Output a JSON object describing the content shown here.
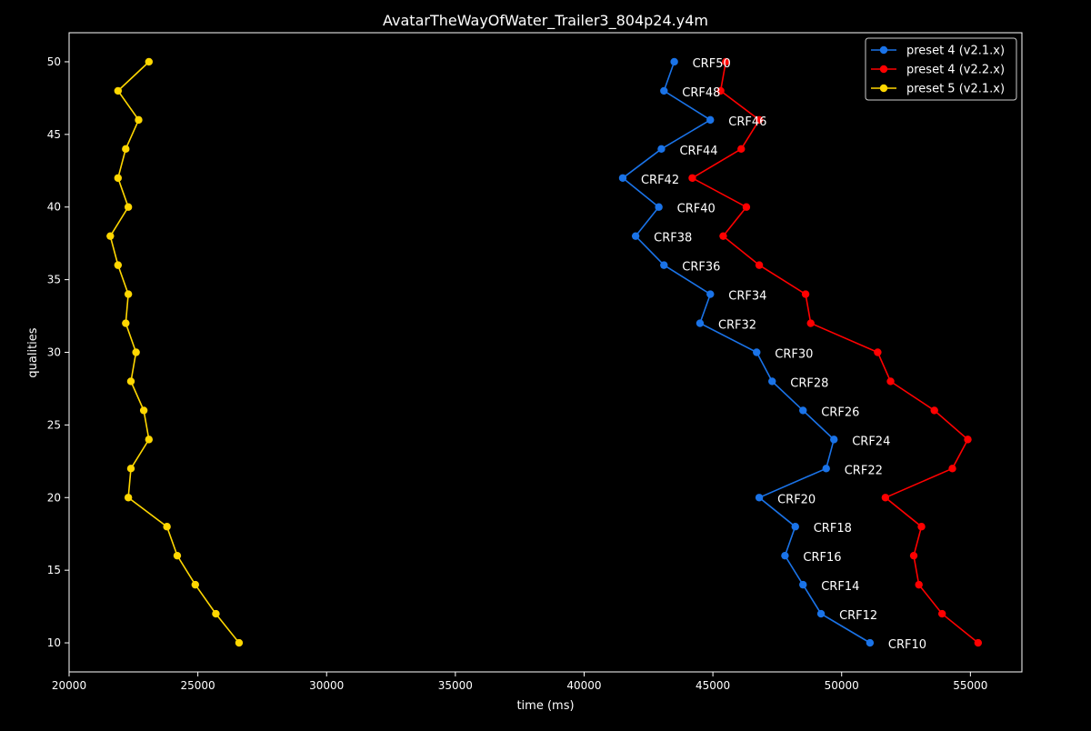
{
  "chart_data": {
    "type": "line",
    "title": "AvatarTheWayOfWater_Trailer3_804p24.y4m",
    "xlabel": "time (ms)",
    "ylabel": "qualities",
    "xlim": [
      20000,
      57000
    ],
    "ylim": [
      8,
      52
    ],
    "xticks": [
      20000,
      25000,
      30000,
      35000,
      40000,
      45000,
      50000,
      55000
    ],
    "yticks": [
      10,
      15,
      20,
      25,
      30,
      35,
      40,
      45,
      50
    ],
    "legend_position": "top-right",
    "y": [
      50,
      48,
      46,
      44,
      42,
      40,
      38,
      36,
      34,
      32,
      30,
      28,
      26,
      24,
      22,
      20,
      18,
      16,
      14,
      12,
      10
    ],
    "point_labels": [
      "CRF50",
      "CRF48",
      "CRF46",
      "CRF44",
      "CRF42",
      "CRF40",
      "CRF38",
      "CRF36",
      "CRF34",
      "CRF32",
      "CRF30",
      "CRF28",
      "CRF26",
      "CRF24",
      "CRF22",
      "CRF20",
      "CRF18",
      "CRF16",
      "CRF14",
      "CRF12",
      "CRF10"
    ],
    "series": [
      {
        "name": "preset 4 (v2.1.x)",
        "color": "#1a73e8",
        "x": [
          43500,
          43100,
          44900,
          43000,
          41500,
          42900,
          42000,
          43100,
          44900,
          44500,
          46700,
          47300,
          48500,
          49700,
          49400,
          46800,
          48200,
          47800,
          48500,
          49200,
          51100
        ],
        "labelled": true
      },
      {
        "name": "preset 4 (v2.2.x)",
        "color": "#ff0000",
        "x": [
          45500,
          45300,
          46800,
          46100,
          44200,
          46300,
          45400,
          46800,
          48600,
          48800,
          51400,
          51900,
          53600,
          54900,
          54300,
          51700,
          53100,
          52800,
          53000,
          53900,
          55300
        ],
        "labelled": false
      },
      {
        "name": "preset 5 (v2.1.x)",
        "color": "#ffd700",
        "x": [
          23100,
          21900,
          22700,
          22200,
          21900,
          22300,
          21600,
          21900,
          22300,
          22200,
          22600,
          22400,
          22900,
          23100,
          22400,
          22300,
          23800,
          24200,
          24900,
          25700,
          26600
        ],
        "labelled": false
      }
    ]
  }
}
